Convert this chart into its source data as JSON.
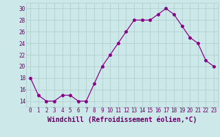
{
  "x": [
    0,
    1,
    2,
    3,
    4,
    5,
    6,
    7,
    8,
    9,
    10,
    11,
    12,
    13,
    14,
    15,
    16,
    17,
    18,
    19,
    20,
    21,
    22,
    23
  ],
  "y": [
    18,
    15,
    14,
    14,
    15,
    15,
    14,
    14,
    17,
    20,
    22,
    24,
    26,
    28,
    28,
    28,
    29,
    30,
    29,
    27,
    25,
    24,
    21,
    20
  ],
  "line_color": "#880088",
  "marker": "o",
  "marker_size": 2.5,
  "bg_color": "#cce8e8",
  "grid_color": "#aacccc",
  "xlabel": "Windchill (Refroidissement éolien,°C)",
  "ylabel_ticks": [
    14,
    16,
    18,
    20,
    22,
    24,
    26,
    28,
    30
  ],
  "xlim": [
    -0.5,
    23.5
  ],
  "ylim": [
    13.0,
    31.0
  ],
  "tick_color": "#660066",
  "tick_fontsize": 5.5,
  "label_fontsize": 7.0
}
